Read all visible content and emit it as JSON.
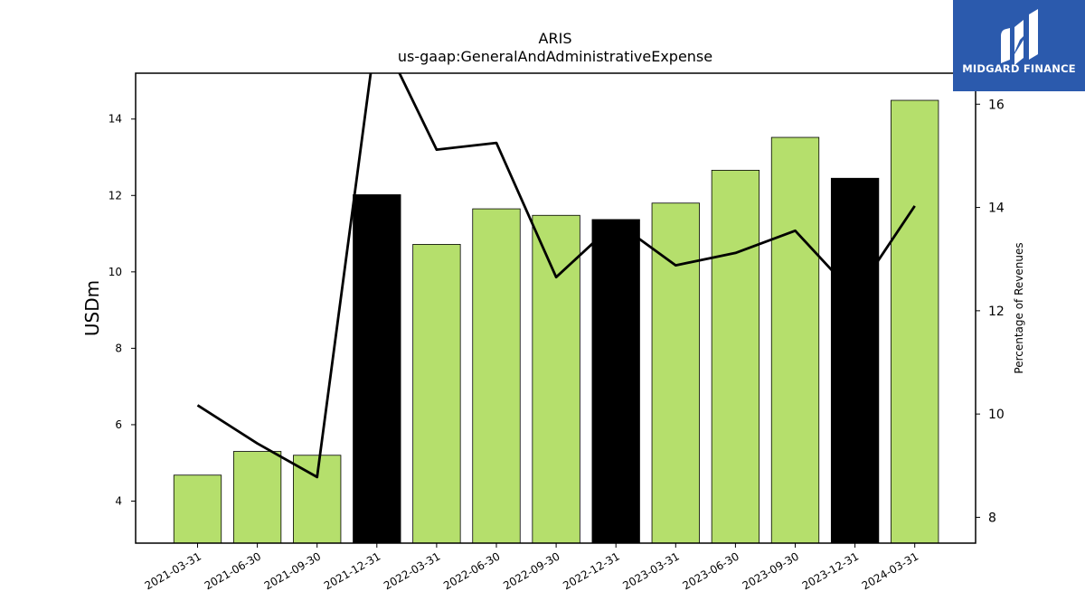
{
  "colors": {
    "bar_regular": "#b5df6c",
    "bar_highlight": "#000000",
    "line": "#000000",
    "logo_bg": "#2b5aad"
  },
  "logo": {
    "icon": "midgard-logo-icon",
    "text": "MIDGARD FINANCE"
  },
  "chart_data": {
    "type": "bar",
    "title": "ARIS",
    "subtitle": "us-gaap:GeneralAndAdministrativeExpense",
    "ylabel": "USDm",
    "y2label": "Percentage of Revenues",
    "ylim": [
      2.9,
      15.2
    ],
    "y2lim": [
      7.5,
      16.6
    ],
    "yticks": [
      4,
      6,
      8,
      10,
      12,
      14
    ],
    "y2ticks": [
      8,
      10,
      12,
      14,
      16
    ],
    "categories": [
      "2021-03-31",
      "2021-06-30",
      "2021-09-30",
      "2021-12-31",
      "2022-03-31",
      "2022-06-30",
      "2022-09-30",
      "2022-12-31",
      "2023-03-31",
      "2023-06-30",
      "2023-09-30",
      "2023-12-31",
      "2024-03-31"
    ],
    "series": [
      {
        "type": "bar",
        "axis": "left",
        "values": [
          4.68,
          5.3,
          5.2,
          12.02,
          10.72,
          11.65,
          11.48,
          11.37,
          11.8,
          12.66,
          13.52,
          12.45,
          14.49
        ],
        "highlight": [
          false,
          false,
          false,
          true,
          false,
          false,
          false,
          true,
          false,
          false,
          false,
          true,
          false
        ]
      },
      {
        "type": "line",
        "axis": "right",
        "values": [
          10.17,
          9.43,
          8.78,
          17.5,
          15.12,
          15.25,
          12.65,
          13.72,
          12.88,
          13.12,
          13.55,
          12.3,
          14.03
        ]
      }
    ],
    "grid": false,
    "legend": "none"
  }
}
